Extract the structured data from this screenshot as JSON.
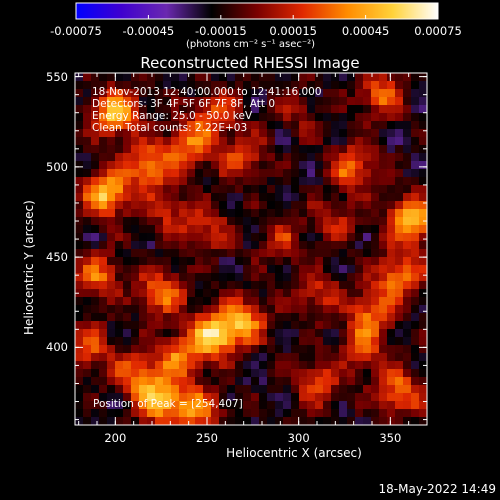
{
  "colors": {
    "background": "#000000",
    "text": "#ffffff",
    "colorbar_stops": [
      "#0000ff",
      "#3f00cf",
      "#6a28b0",
      "#000000",
      "#7a0000",
      "#e02800",
      "#ff8c00",
      "#ffd23a",
      "#ffffff"
    ]
  },
  "colorbar": {
    "ticks": [
      "-0.00075",
      "-0.00045",
      "-0.00015",
      "0.00015",
      "0.00045",
      "0.00075"
    ],
    "units": "(photons cm⁻² s⁻¹ asec⁻²)",
    "range": [
      -0.00075,
      0.00075
    ]
  },
  "chart_data": {
    "type": "heatmap",
    "title": "Reconstructed RHESSI Image",
    "xlabel": "Heliocentric X (arcsec)",
    "ylabel": "Heliocentric Y (arcsec)",
    "xticks": [
      "200",
      "250",
      "300",
      "350"
    ],
    "yticks": [
      "550",
      "500",
      "450",
      "400"
    ],
    "xlim": [
      178,
      370
    ],
    "ylim": [
      357,
      552
    ],
    "annotation_lines": [
      "18-Nov-2013 12:40:00.000 to 12:41:16.000",
      "Detectors: 3F 4F 5F 6F 7F 8F, Att 0",
      "Energy Range: 25.0 - 50.0 keV",
      "Clean     Total counts: 2.22E+03"
    ],
    "peak_text": "Position of Peak = [254,407]",
    "peak": [
      254,
      407
    ],
    "blobs": [
      {
        "x": 200,
        "y": 530,
        "v": 0.0007
      },
      {
        "x": 195,
        "y": 485,
        "v": 0.00072
      },
      {
        "x": 218,
        "y": 500,
        "v": 0.00055
      },
      {
        "x": 240,
        "y": 512,
        "v": 0.00048
      },
      {
        "x": 255,
        "y": 530,
        "v": 0.00042
      },
      {
        "x": 270,
        "y": 505,
        "v": 0.0004
      },
      {
        "x": 250,
        "y": 465,
        "v": 0.00035
      },
      {
        "x": 230,
        "y": 475,
        "v": 0.0003
      },
      {
        "x": 225,
        "y": 430,
        "v": 0.0005
      },
      {
        "x": 254,
        "y": 407,
        "v": 0.00075
      },
      {
        "x": 270,
        "y": 415,
        "v": 0.00055
      },
      {
        "x": 235,
        "y": 395,
        "v": 0.00048
      },
      {
        "x": 212,
        "y": 385,
        "v": 0.00045
      },
      {
        "x": 225,
        "y": 370,
        "v": 0.00065
      },
      {
        "x": 245,
        "y": 365,
        "v": 0.0005
      },
      {
        "x": 190,
        "y": 440,
        "v": 0.00045
      },
      {
        "x": 185,
        "y": 400,
        "v": 0.0004
      },
      {
        "x": 290,
        "y": 460,
        "v": 0.0003
      },
      {
        "x": 310,
        "y": 430,
        "v": 0.00035
      },
      {
        "x": 330,
        "y": 500,
        "v": 0.0005
      },
      {
        "x": 345,
        "y": 540,
        "v": 0.00045
      },
      {
        "x": 362,
        "y": 470,
        "v": 0.00075
      },
      {
        "x": 355,
        "y": 440,
        "v": 0.00055
      },
      {
        "x": 340,
        "y": 420,
        "v": 0.00045
      },
      {
        "x": 335,
        "y": 400,
        "v": 0.0004
      },
      {
        "x": 355,
        "y": 375,
        "v": 0.0005
      },
      {
        "x": 310,
        "y": 380,
        "v": 0.0004
      },
      {
        "x": 300,
        "y": 530,
        "v": 0.0002
      },
      {
        "x": 320,
        "y": 470,
        "v": 0.00028
      }
    ]
  },
  "footer_date": "18-May-2022 14:49"
}
